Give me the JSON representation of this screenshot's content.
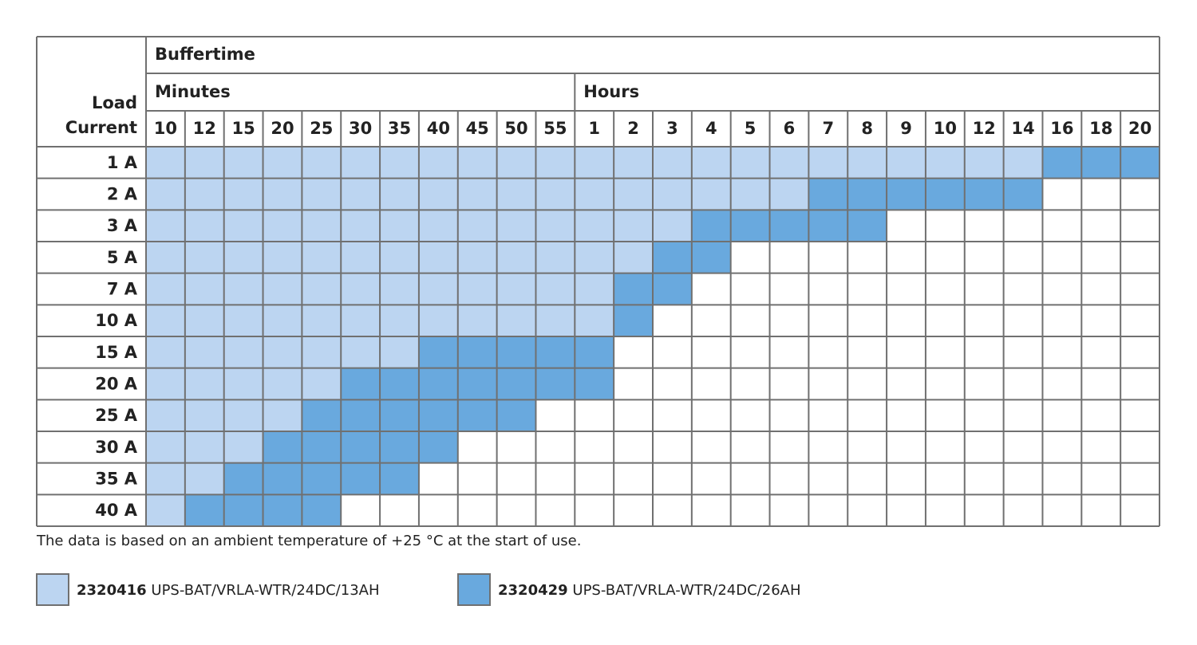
{
  "header": {
    "title": "Buffertime",
    "row_header": [
      "Load",
      "Current"
    ],
    "groups": [
      {
        "label": "Minutes",
        "columns": [
          10,
          12,
          15,
          20,
          25,
          30,
          35,
          40,
          45,
          50,
          55
        ]
      },
      {
        "label": "Hours",
        "columns": [
          1,
          2,
          3,
          4,
          5,
          6,
          7,
          8,
          9,
          10,
          12,
          14,
          16,
          18,
          20
        ]
      }
    ]
  },
  "table": {
    "rows": [
      {
        "label": "1 A",
        "cells": [
          "#bcd5f1",
          "#bcd5f1",
          "#bcd5f1",
          "#bcd5f1",
          "#bcd5f1",
          "#bcd5f1",
          "#bcd5f1",
          "#bcd5f1",
          "#bcd5f1",
          "#bcd5f1",
          "#bcd5f1",
          "#bcd5f1",
          "#bcd5f1",
          "#bcd5f1",
          "#bcd5f1",
          "#bcd5f1",
          "#bcd5f1",
          "#bcd5f1",
          "#bcd5f1",
          "#bcd5f1",
          "#bcd5f1",
          "#bcd5f1",
          "#bcd5f1",
          "#69a9de",
          "#69a9de",
          "#69a9de"
        ]
      },
      {
        "label": "2 A",
        "cells": [
          "#bcd5f1",
          "#bcd5f1",
          "#bcd5f1",
          "#bcd5f1",
          "#bcd5f1",
          "#bcd5f1",
          "#bcd5f1",
          "#bcd5f1",
          "#bcd5f1",
          "#bcd5f1",
          "#bcd5f1",
          "#bcd5f1",
          "#bcd5f1",
          "#bcd5f1",
          "#bcd5f1",
          "#bcd5f1",
          "#bcd5f1",
          "#69a9de",
          "#69a9de",
          "#69a9de",
          "#69a9de",
          "#69a9de",
          "#69a9de",
          null,
          null,
          null
        ]
      },
      {
        "label": "3 A",
        "cells": [
          "#bcd5f1",
          "#bcd5f1",
          "#bcd5f1",
          "#bcd5f1",
          "#bcd5f1",
          "#bcd5f1",
          "#bcd5f1",
          "#bcd5f1",
          "#bcd5f1",
          "#bcd5f1",
          "#bcd5f1",
          "#bcd5f1",
          "#bcd5f1",
          "#bcd5f1",
          "#69a9de",
          "#69a9de",
          "#69a9de",
          "#69a9de",
          "#69a9de",
          null,
          null,
          null,
          null,
          null,
          null,
          null
        ]
      },
      {
        "label": "5 A",
        "cells": [
          "#bcd5f1",
          "#bcd5f1",
          "#bcd5f1",
          "#bcd5f1",
          "#bcd5f1",
          "#bcd5f1",
          "#bcd5f1",
          "#bcd5f1",
          "#bcd5f1",
          "#bcd5f1",
          "#bcd5f1",
          "#bcd5f1",
          "#bcd5f1",
          "#69a9de",
          "#69a9de",
          null,
          null,
          null,
          null,
          null,
          null,
          null,
          null,
          null,
          null,
          null
        ]
      },
      {
        "label": "7 A",
        "cells": [
          "#bcd5f1",
          "#bcd5f1",
          "#bcd5f1",
          "#bcd5f1",
          "#bcd5f1",
          "#bcd5f1",
          "#bcd5f1",
          "#bcd5f1",
          "#bcd5f1",
          "#bcd5f1",
          "#bcd5f1",
          "#bcd5f1",
          "#69a9de",
          "#69a9de",
          null,
          null,
          null,
          null,
          null,
          null,
          null,
          null,
          null,
          null,
          null,
          null
        ]
      },
      {
        "label": "10 A",
        "cells": [
          "#bcd5f1",
          "#bcd5f1",
          "#bcd5f1",
          "#bcd5f1",
          "#bcd5f1",
          "#bcd5f1",
          "#bcd5f1",
          "#bcd5f1",
          "#bcd5f1",
          "#bcd5f1",
          "#bcd5f1",
          "#bcd5f1",
          "#69a9de",
          null,
          null,
          null,
          null,
          null,
          null,
          null,
          null,
          null,
          null,
          null,
          null,
          null
        ]
      },
      {
        "label": "15 A",
        "cells": [
          "#bcd5f1",
          "#bcd5f1",
          "#bcd5f1",
          "#bcd5f1",
          "#bcd5f1",
          "#bcd5f1",
          "#bcd5f1",
          "#69a9de",
          "#69a9de",
          "#69a9de",
          "#69a9de",
          "#69a9de",
          null,
          null,
          null,
          null,
          null,
          null,
          null,
          null,
          null,
          null,
          null,
          null,
          null,
          null
        ]
      },
      {
        "label": "20 A",
        "cells": [
          "#bcd5f1",
          "#bcd5f1",
          "#bcd5f1",
          "#bcd5f1",
          "#bcd5f1",
          "#69a9de",
          "#69a9de",
          "#69a9de",
          "#69a9de",
          "#69a9de",
          "#69a9de",
          "#69a9de",
          null,
          null,
          null,
          null,
          null,
          null,
          null,
          null,
          null,
          null,
          null,
          null,
          null,
          null
        ]
      },
      {
        "label": "25 A",
        "cells": [
          "#bcd5f1",
          "#bcd5f1",
          "#bcd5f1",
          "#bcd5f1",
          "#69a9de",
          "#69a9de",
          "#69a9de",
          "#69a9de",
          "#69a9de",
          "#69a9de",
          null,
          null,
          null,
          null,
          null,
          null,
          null,
          null,
          null,
          null,
          null,
          null,
          null,
          null,
          null,
          null
        ]
      },
      {
        "label": "30 A",
        "cells": [
          "#bcd5f1",
          "#bcd5f1",
          "#bcd5f1",
          "#69a9de",
          "#69a9de",
          "#69a9de",
          "#69a9de",
          "#69a9de",
          null,
          null,
          null,
          null,
          null,
          null,
          null,
          null,
          null,
          null,
          null,
          null,
          null,
          null,
          null,
          null,
          null,
          null
        ]
      },
      {
        "label": "35 A",
        "cells": [
          "#bcd5f1",
          "#bcd5f1",
          "#69a9de",
          "#69a9de",
          "#69a9de",
          "#69a9de",
          "#69a9de",
          null,
          null,
          null,
          null,
          null,
          null,
          null,
          null,
          null,
          null,
          null,
          null,
          null,
          null,
          null,
          null,
          null,
          null,
          null
        ]
      },
      {
        "label": "40 A",
        "cells": [
          "#bcd5f1",
          "#69a9de",
          "#69a9de",
          "#69a9de",
          "#69a9de",
          null,
          null,
          null,
          null,
          null,
          null,
          null,
          null,
          null,
          null,
          null,
          null,
          null,
          null,
          null,
          null,
          null,
          null,
          null,
          null,
          null
        ]
      }
    ]
  },
  "footnote": "The data is based on an ambient temperature of +25 °C at the start of use.",
  "legend": [
    {
      "code": "2320416",
      "name": "UPS-BAT/VRLA-WTR/24DC/13AH",
      "color": "#bcd5f1"
    },
    {
      "code": "2320429",
      "name": "UPS-BAT/VRLA-WTR/24DC/26AH",
      "color": "#69a9de"
    }
  ]
}
